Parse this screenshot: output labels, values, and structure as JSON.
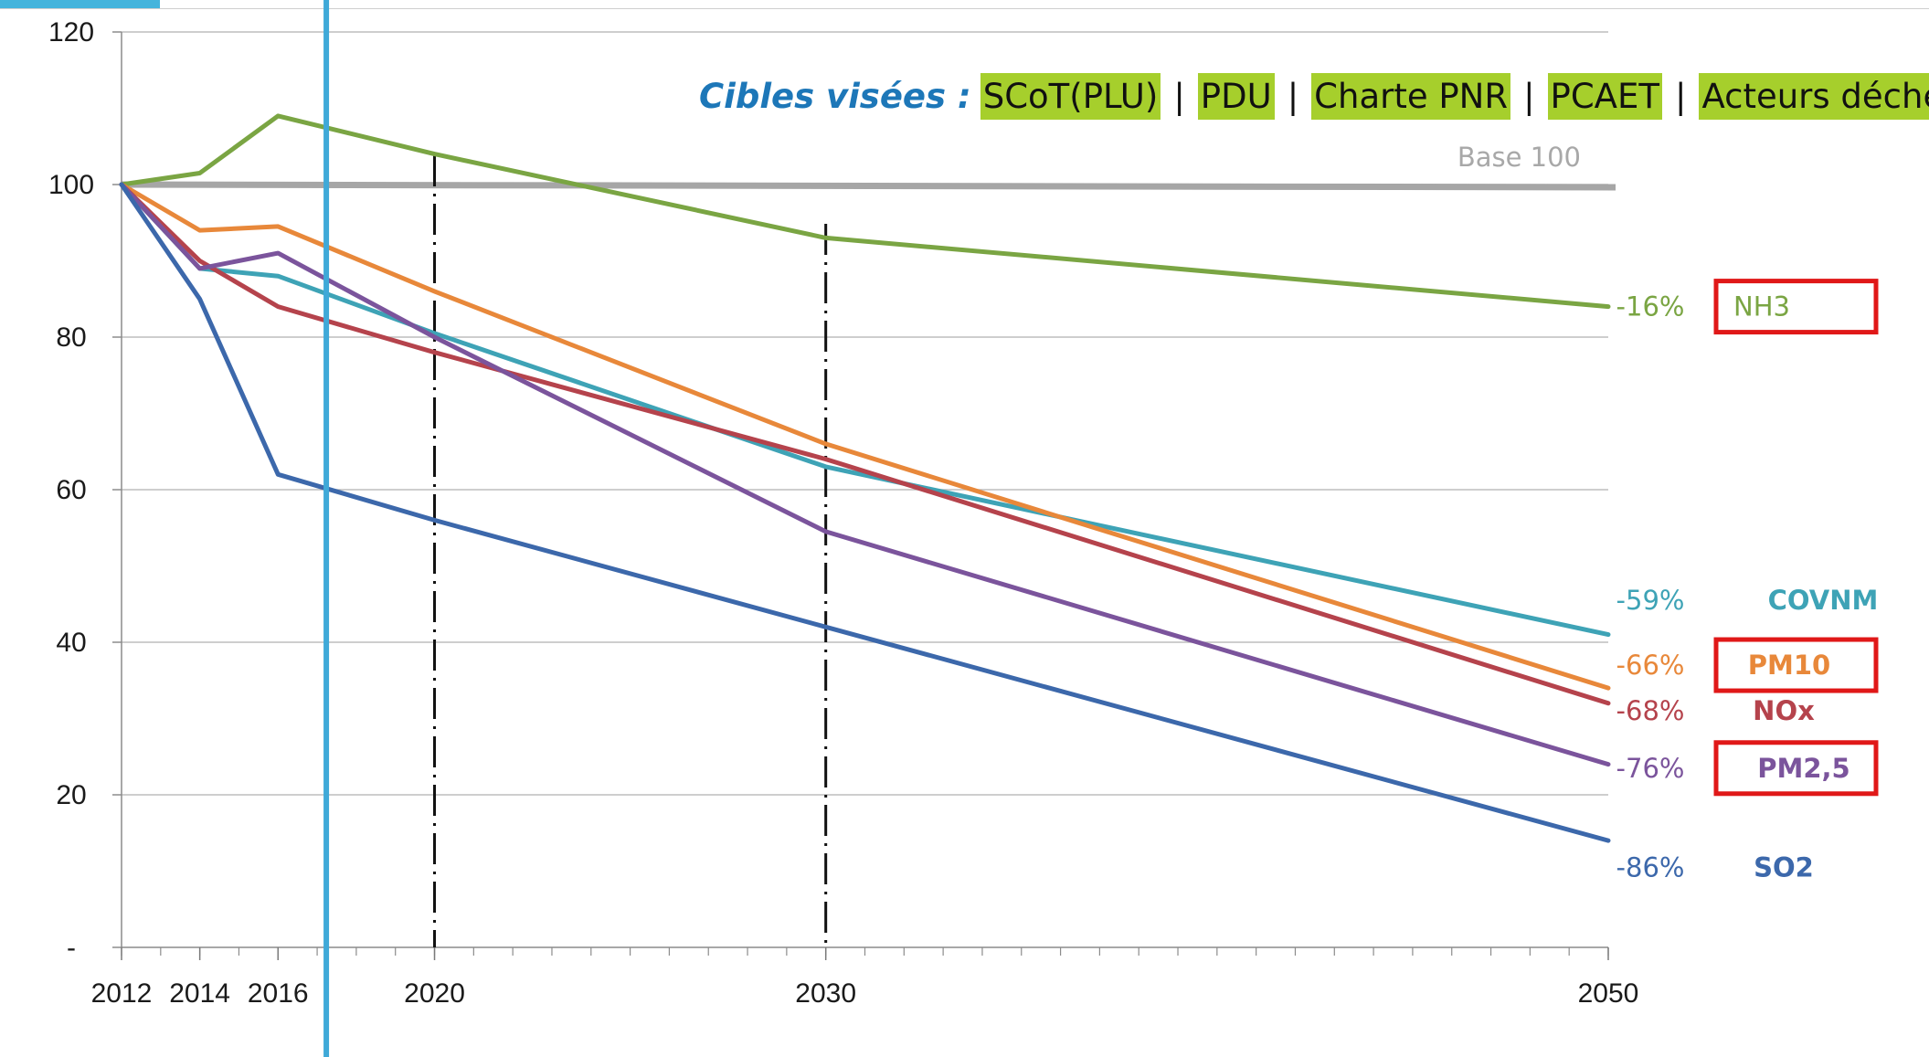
{
  "chart_data": {
    "type": "line",
    "title": "",
    "xlabel": "",
    "ylabel": "",
    "xlim": [
      2012,
      2050
    ],
    "ylim": [
      0,
      120
    ],
    "x_ticks": [
      {
        "value": 2012,
        "label": "2012"
      },
      {
        "value": 2014,
        "label": "2014"
      },
      {
        "value": 2016,
        "label": "2016"
      },
      {
        "value": 2020,
        "label": "2020"
      },
      {
        "value": 2030,
        "label": "2030"
      },
      {
        "value": 2050,
        "label": "2050"
      }
    ],
    "y_ticks": [
      {
        "value": 0,
        "label": "-"
      },
      {
        "value": 20,
        "label": "20"
      },
      {
        "value": 40,
        "label": "40"
      },
      {
        "value": 60,
        "label": "60"
      },
      {
        "value": 80,
        "label": "80"
      },
      {
        "value": 100,
        "label": "100"
      },
      {
        "value": 120,
        "label": "120"
      }
    ],
    "grid": true,
    "reference_line": {
      "value": 100,
      "label": "Base 100",
      "color": "#a6a6a6"
    },
    "current_year_marker": {
      "x": 2017,
      "color": "#3fa9d8"
    },
    "milestones": [
      2020,
      2030
    ],
    "series": [
      {
        "name": "NH3",
        "change_label": "-16%",
        "color": "#7aa543",
        "boxed": true,
        "points": [
          [
            2012,
            100
          ],
          [
            2014,
            101.5
          ],
          [
            2016,
            109
          ],
          [
            2020,
            104
          ],
          [
            2030,
            93
          ],
          [
            2050,
            84
          ]
        ]
      },
      {
        "name": "COVNM",
        "change_label": "-59%",
        "color": "#3ea3b6",
        "boxed": false,
        "points": [
          [
            2012,
            100
          ],
          [
            2014,
            89
          ],
          [
            2016,
            88
          ],
          [
            2020,
            80.5
          ],
          [
            2030,
            63
          ],
          [
            2050,
            41
          ]
        ]
      },
      {
        "name": "PM10",
        "change_label": "-66%",
        "color": "#e8883a",
        "boxed": true,
        "points": [
          [
            2012,
            100
          ],
          [
            2014,
            94
          ],
          [
            2016,
            94.5
          ],
          [
            2020,
            86
          ],
          [
            2030,
            66
          ],
          [
            2050,
            34
          ]
        ]
      },
      {
        "name": "NOx",
        "change_label": "-68%",
        "color": "#b5434c",
        "boxed": false,
        "points": [
          [
            2012,
            100
          ],
          [
            2014,
            90
          ],
          [
            2016,
            84
          ],
          [
            2020,
            78
          ],
          [
            2030,
            64
          ],
          [
            2050,
            32
          ]
        ]
      },
      {
        "name": "PM2,5",
        "change_label": "-76%",
        "color": "#7b549c",
        "boxed": true,
        "points": [
          [
            2012,
            100
          ],
          [
            2014,
            89
          ],
          [
            2016,
            91
          ],
          [
            2020,
            80
          ],
          [
            2030,
            54.5
          ],
          [
            2050,
            24
          ]
        ]
      },
      {
        "name": "SO2",
        "change_label": "-86%",
        "color": "#3c68ab",
        "boxed": false,
        "points": [
          [
            2012,
            100
          ],
          [
            2014,
            85
          ],
          [
            2016,
            62
          ],
          [
            2020,
            56
          ],
          [
            2030,
            42
          ],
          [
            2050,
            14
          ]
        ]
      }
    ]
  },
  "targets": {
    "label": "Cibles visées :",
    "items": [
      "SCoT(PLU)",
      "PDU",
      "Charte PNR",
      "PCAET",
      "Acteurs déchets"
    ],
    "separator": "|",
    "chip_color": "#a6cf2c"
  }
}
